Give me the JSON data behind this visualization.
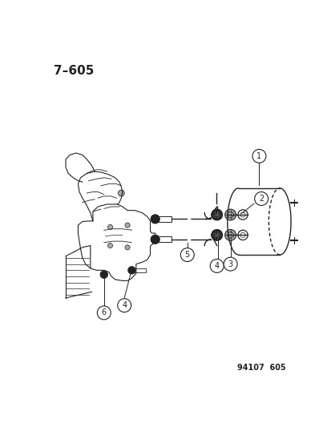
{
  "title": "7–605",
  "footer": "94107  605",
  "background_color": "#ffffff",
  "line_color": "#222222",
  "title_font_size": 11,
  "footer_font_size": 7,
  "fig_width": 4.14,
  "fig_height": 5.33,
  "dpi": 100
}
